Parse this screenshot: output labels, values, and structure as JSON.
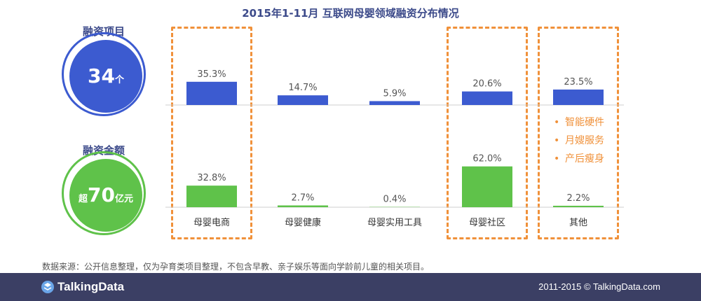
{
  "title": "2015年1-11月  互联网母婴领域融资分布情况",
  "left_panel": {
    "projects_label": "融资项目",
    "projects_value": "34",
    "projects_unit": "个",
    "amount_label": "融资金额",
    "amount_prefix": "超",
    "amount_value": "70",
    "amount_unit": "亿元"
  },
  "chart_data": {
    "type": "bar",
    "categories": [
      "母婴电商",
      "母婴健康",
      "母婴实用工具",
      "母婴社区",
      "其他"
    ],
    "series": [
      {
        "values": [
          35.3,
          14.7,
          5.9,
          20.6,
          23.5
        ],
        "labels": [
          "35.3%",
          "14.7%",
          "5.9%",
          "20.6%",
          "23.5%"
        ],
        "color": "#3c5bd0"
      },
      {
        "values": [
          32.8,
          2.7,
          0.4,
          62.0,
          2.2
        ],
        "labels": [
          "32.8%",
          "2.7%",
          "0.4%",
          "62.0%",
          "2.2%"
        ],
        "color": "#5fc24a"
      }
    ],
    "highlighted_categories": [
      "母婴电商",
      "母婴社区",
      "其他"
    ],
    "highlight_color": "#f0913a"
  },
  "other_items": [
    "智能硬件",
    "月嫂服务",
    "产后瘦身"
  ],
  "bullet_char": "•",
  "source_note": "数据来源：公开信息整理，仅为孕育类项目整理，不包含早教、亲子娱乐等面向学龄前儿童的相关项目。",
  "footer": {
    "brand": "TalkingData",
    "copyright": "2011-2015 © TalkingData.com"
  }
}
